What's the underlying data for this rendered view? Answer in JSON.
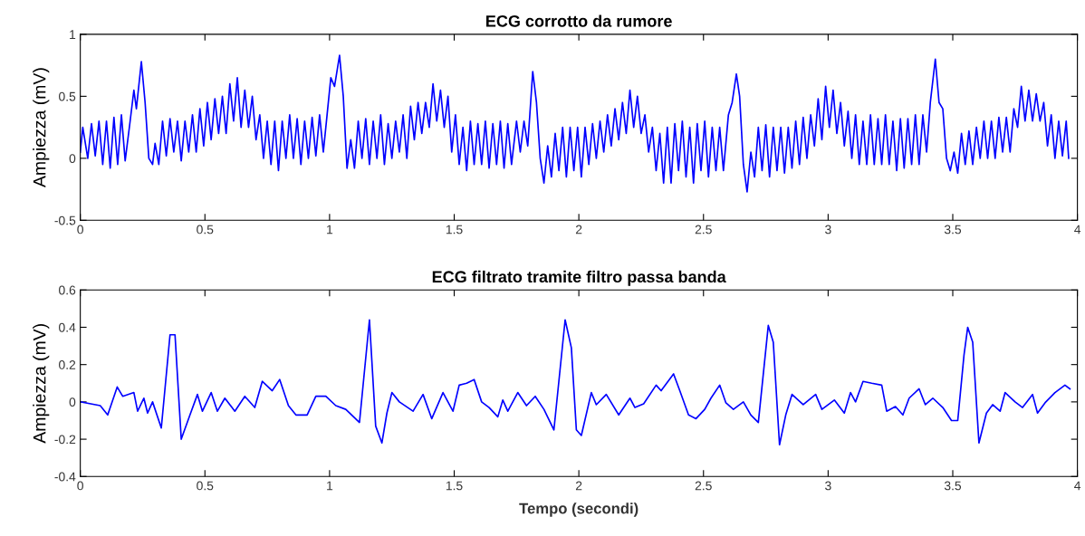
{
  "chart_data": [
    {
      "type": "line",
      "title": "ECG corrotto da rumore",
      "ylabel": "Ampiezza (mV)",
      "xlim": [
        0,
        4
      ],
      "ylim": [
        -0.5,
        1
      ],
      "xticks": [
        0,
        0.5,
        1,
        1.5,
        2,
        2.5,
        3,
        3.5,
        4
      ],
      "yticks": [
        -0.5,
        0,
        0.5,
        1
      ],
      "series": [
        {
          "color": "#0000ff",
          "x": [
            0.0,
            0.01,
            0.03,
            0.045,
            0.06,
            0.075,
            0.09,
            0.105,
            0.12,
            0.135,
            0.15,
            0.165,
            0.18,
            0.2,
            0.215,
            0.225,
            0.245,
            0.26,
            0.275,
            0.29,
            0.3,
            0.315,
            0.33,
            0.345,
            0.36,
            0.375,
            0.39,
            0.405,
            0.42,
            0.435,
            0.45,
            0.465,
            0.48,
            0.495,
            0.51,
            0.525,
            0.54,
            0.555,
            0.57,
            0.585,
            0.6,
            0.615,
            0.63,
            0.645,
            0.66,
            0.675,
            0.69,
            0.705,
            0.72,
            0.735,
            0.75,
            0.765,
            0.78,
            0.795,
            0.81,
            0.825,
            0.84,
            0.855,
            0.87,
            0.885,
            0.9,
            0.915,
            0.93,
            0.945,
            0.96,
            0.975,
            0.99,
            1.005,
            1.02,
            1.04,
            1.055,
            1.07,
            1.085,
            1.1,
            1.115,
            1.13,
            1.145,
            1.16,
            1.175,
            1.19,
            1.205,
            1.22,
            1.235,
            1.25,
            1.265,
            1.28,
            1.295,
            1.31,
            1.325,
            1.34,
            1.355,
            1.37,
            1.385,
            1.4,
            1.415,
            1.43,
            1.445,
            1.46,
            1.475,
            1.49,
            1.505,
            1.52,
            1.535,
            1.55,
            1.565,
            1.58,
            1.595,
            1.61,
            1.625,
            1.64,
            1.655,
            1.67,
            1.685,
            1.7,
            1.715,
            1.73,
            1.75,
            1.765,
            1.78,
            1.795,
            1.815,
            1.83,
            1.845,
            1.86,
            1.875,
            1.89,
            1.905,
            1.92,
            1.935,
            1.95,
            1.965,
            1.98,
            1.995,
            2.01,
            2.025,
            2.04,
            2.055,
            2.07,
            2.085,
            2.1,
            2.115,
            2.13,
            2.145,
            2.16,
            2.175,
            2.19,
            2.205,
            2.22,
            2.235,
            2.25,
            2.265,
            2.28,
            2.295,
            2.31,
            2.325,
            2.34,
            2.355,
            2.37,
            2.385,
            2.4,
            2.415,
            2.43,
            2.445,
            2.46,
            2.475,
            2.49,
            2.505,
            2.52,
            2.535,
            2.55,
            2.565,
            2.58,
            2.6,
            2.615,
            2.632,
            2.645,
            2.66,
            2.675,
            2.69,
            2.705,
            2.72,
            2.735,
            2.75,
            2.765,
            2.78,
            2.795,
            2.81,
            2.825,
            2.84,
            2.855,
            2.87,
            2.885,
            2.9,
            2.915,
            2.93,
            2.945,
            2.96,
            2.975,
            2.99,
            3.005,
            3.02,
            3.035,
            3.05,
            3.065,
            3.08,
            3.095,
            3.11,
            3.125,
            3.14,
            3.155,
            3.17,
            3.185,
            3.2,
            3.215,
            3.23,
            3.245,
            3.26,
            3.275,
            3.29,
            3.305,
            3.32,
            3.335,
            3.35,
            3.365,
            3.38,
            3.395,
            3.41,
            3.43,
            3.445,
            3.46,
            3.475,
            3.49,
            3.505,
            3.52,
            3.535,
            3.55,
            3.565,
            3.58,
            3.595,
            3.61,
            3.625,
            3.64,
            3.655,
            3.67,
            3.685,
            3.7,
            3.715,
            3.73,
            3.745,
            3.76,
            3.775,
            3.79,
            3.805,
            3.82,
            3.835,
            3.85,
            3.865,
            3.88,
            3.895,
            3.91,
            3.925,
            3.94,
            3.955,
            3.965
          ],
          "values": [
            0.05,
            0.25,
            0.0,
            0.28,
            0.02,
            0.3,
            -0.05,
            0.3,
            -0.08,
            0.33,
            -0.05,
            0.35,
            -0.02,
            0.3,
            0.55,
            0.4,
            0.78,
            0.45,
            0.0,
            -0.05,
            0.12,
            -0.05,
            0.3,
            0.02,
            0.32,
            0.05,
            0.3,
            -0.02,
            0.3,
            0.05,
            0.35,
            0.05,
            0.4,
            0.1,
            0.45,
            0.15,
            0.48,
            0.2,
            0.5,
            0.2,
            0.6,
            0.3,
            0.65,
            0.25,
            0.55,
            0.25,
            0.5,
            0.15,
            0.35,
            0.0,
            0.3,
            -0.05,
            0.3,
            -0.1,
            0.3,
            0.0,
            0.35,
            0.0,
            0.32,
            -0.05,
            0.3,
            0.0,
            0.33,
            0.02,
            0.35,
            0.05,
            0.35,
            0.65,
            0.58,
            0.83,
            0.5,
            -0.08,
            0.15,
            -0.08,
            0.3,
            0.0,
            0.32,
            -0.05,
            0.3,
            0.0,
            0.35,
            -0.05,
            0.28,
            0.0,
            0.3,
            0.05,
            0.35,
            0.0,
            0.42,
            0.15,
            0.45,
            0.2,
            0.45,
            0.25,
            0.6,
            0.3,
            0.55,
            0.25,
            0.5,
            0.05,
            0.35,
            -0.05,
            0.25,
            -0.1,
            0.3,
            -0.05,
            0.28,
            -0.05,
            0.3,
            -0.08,
            0.28,
            -0.05,
            0.3,
            -0.08,
            0.28,
            -0.05,
            0.3,
            0.05,
            0.3,
            0.1,
            0.7,
            0.45,
            0.0,
            -0.2,
            0.1,
            -0.15,
            0.2,
            -0.1,
            0.25,
            -0.15,
            0.25,
            -0.1,
            0.25,
            -0.15,
            0.25,
            -0.05,
            0.28,
            0.0,
            0.3,
            0.05,
            0.35,
            0.1,
            0.4,
            0.15,
            0.45,
            0.2,
            0.55,
            0.25,
            0.5,
            0.2,
            0.35,
            0.05,
            0.25,
            -0.1,
            0.2,
            -0.2,
            0.25,
            -0.2,
            0.28,
            -0.1,
            0.3,
            -0.15,
            0.25,
            -0.2,
            0.28,
            -0.1,
            0.3,
            -0.15,
            0.25,
            -0.1,
            0.25,
            -0.1,
            0.35,
            0.45,
            0.68,
            0.5,
            -0.05,
            -0.27,
            0.05,
            -0.15,
            0.25,
            -0.1,
            0.27,
            -0.15,
            0.25,
            -0.1,
            0.25,
            -0.12,
            0.25,
            -0.08,
            0.3,
            -0.05,
            0.33,
            0.0,
            0.35,
            0.1,
            0.48,
            0.15,
            0.58,
            0.25,
            0.55,
            0.2,
            0.45,
            0.1,
            0.38,
            0.0,
            0.35,
            -0.05,
            0.3,
            -0.05,
            0.35,
            -0.05,
            0.32,
            -0.05,
            0.35,
            -0.05,
            0.3,
            -0.1,
            0.32,
            -0.08,
            0.32,
            -0.05,
            0.35,
            -0.05,
            0.35,
            0.05,
            0.45,
            0.8,
            0.45,
            0.4,
            0.0,
            -0.1,
            0.05,
            -0.12,
            0.2,
            -0.05,
            0.22,
            -0.05,
            0.25,
            0.0,
            0.3,
            0.0,
            0.3,
            0.0,
            0.33,
            0.05,
            0.33,
            0.05,
            0.4,
            0.25,
            0.58,
            0.3,
            0.55,
            0.3,
            0.52,
            0.3,
            0.45,
            0.1,
            0.35,
            0.0,
            0.3,
            0.02,
            0.3,
            0.0
          ]
        }
      ]
    },
    {
      "type": "line",
      "title": "ECG filtrato tramite filtro passa banda",
      "xlabel": "Tempo (secondi)",
      "ylabel": "Ampiezza (mV)",
      "xlim": [
        0,
        4
      ],
      "ylim": [
        -0.4,
        0.6
      ],
      "xticks": [
        0,
        0.5,
        1,
        1.5,
        2,
        2.5,
        3,
        3.5,
        4
      ],
      "yticks": [
        -0.4,
        -0.2,
        0,
        0.2,
        0.4,
        0.6
      ],
      "series": [
        {
          "color": "#0000ff",
          "x": [
            0.0,
            0.08,
            0.11,
            0.148,
            0.17,
            0.215,
            0.23,
            0.255,
            0.27,
            0.29,
            0.325,
            0.36,
            0.38,
            0.405,
            0.44,
            0.47,
            0.49,
            0.525,
            0.55,
            0.58,
            0.62,
            0.66,
            0.7,
            0.73,
            0.77,
            0.8,
            0.835,
            0.865,
            0.91,
            0.945,
            0.985,
            1.025,
            1.065,
            1.12,
            1.16,
            1.185,
            1.21,
            1.23,
            1.25,
            1.28,
            1.335,
            1.375,
            1.41,
            1.455,
            1.495,
            1.52,
            1.55,
            1.58,
            1.61,
            1.64,
            1.675,
            1.695,
            1.715,
            1.755,
            1.79,
            1.825,
            1.86,
            1.9,
            1.945,
            1.97,
            1.99,
            2.01,
            2.05,
            2.07,
            2.11,
            2.16,
            2.205,
            2.225,
            2.26,
            2.31,
            2.33,
            2.38,
            2.405,
            2.44,
            2.47,
            2.505,
            2.53,
            2.565,
            2.59,
            2.62,
            2.66,
            2.69,
            2.72,
            2.76,
            2.78,
            2.805,
            2.83,
            2.855,
            2.9,
            2.95,
            2.975,
            3.025,
            3.065,
            3.09,
            3.11,
            3.14,
            3.175,
            3.215,
            3.235,
            3.27,
            3.3,
            3.325,
            3.365,
            3.39,
            3.42,
            3.46,
            3.495,
            3.52,
            3.545,
            3.56,
            3.58,
            3.605,
            3.635,
            3.66,
            3.69,
            3.71,
            3.75,
            3.78,
            3.82,
            3.84,
            3.87,
            3.91,
            3.95,
            3.97
          ],
          "values": [
            0.0,
            -0.02,
            -0.07,
            0.08,
            0.03,
            0.05,
            -0.05,
            0.02,
            -0.06,
            0.0,
            -0.14,
            0.36,
            0.36,
            -0.2,
            -0.07,
            0.04,
            -0.05,
            0.05,
            -0.05,
            0.02,
            -0.05,
            0.03,
            -0.03,
            0.11,
            0.06,
            0.12,
            -0.02,
            -0.07,
            -0.07,
            0.03,
            0.03,
            -0.02,
            -0.04,
            -0.11,
            0.44,
            -0.13,
            -0.22,
            -0.06,
            0.05,
            0.0,
            -0.05,
            0.04,
            -0.09,
            0.05,
            -0.05,
            0.09,
            0.1,
            0.12,
            0.0,
            -0.03,
            -0.08,
            0.01,
            -0.05,
            0.05,
            -0.02,
            0.03,
            -0.04,
            -0.15,
            0.44,
            0.29,
            -0.15,
            -0.18,
            0.05,
            -0.015,
            0.04,
            -0.07,
            0.02,
            -0.03,
            -0.01,
            0.09,
            0.06,
            0.15,
            0.06,
            -0.07,
            -0.09,
            -0.04,
            0.02,
            0.09,
            -0.005,
            -0.04,
            0.0,
            -0.07,
            -0.11,
            0.41,
            0.32,
            -0.23,
            -0.07,
            0.04,
            -0.015,
            0.04,
            -0.04,
            0.01,
            -0.06,
            0.05,
            0.0,
            0.11,
            0.1,
            0.09,
            -0.05,
            -0.025,
            -0.07,
            0.02,
            0.07,
            -0.015,
            0.02,
            -0.03,
            -0.1,
            -0.1,
            0.25,
            0.4,
            0.32,
            -0.22,
            -0.06,
            -0.015,
            -0.05,
            0.05,
            0.0,
            -0.03,
            0.04,
            -0.06,
            -0.005,
            0.05,
            0.09,
            0.07
          ]
        }
      ]
    }
  ]
}
